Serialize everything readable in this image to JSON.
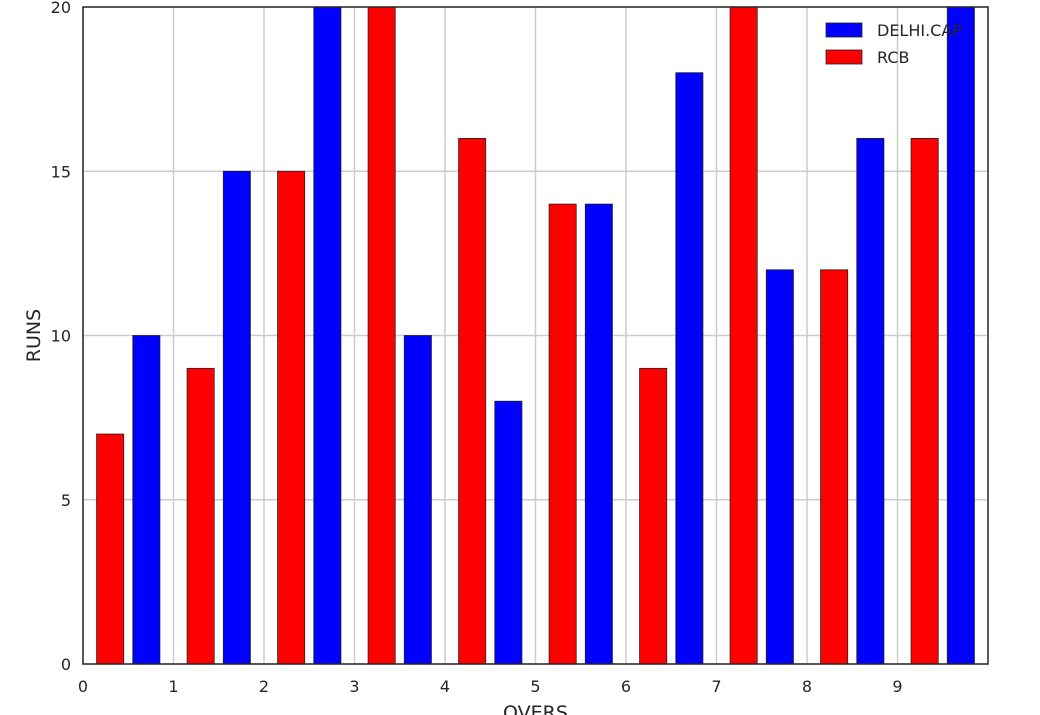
{
  "chart_data": {
    "type": "bar",
    "xlabel": "OVERS",
    "ylabel": "RUNS",
    "xlim": [
      0,
      10
    ],
    "ylim": [
      0,
      20
    ],
    "x_ticks": [
      "0",
      "1",
      "2",
      "3",
      "4",
      "5",
      "6",
      "7",
      "8",
      "9"
    ],
    "y_ticks": [
      "0",
      "5",
      "10",
      "15",
      "20"
    ],
    "grid": true,
    "legend_position": "top-right",
    "series": [
      {
        "name": "DELHI.CAP",
        "color": "#0000ff",
        "x": [
          0.7,
          1.7,
          2.7,
          3.7,
          4.7,
          5.7,
          6.7,
          7.7,
          8.7,
          9.7
        ],
        "values": [
          10,
          15,
          20,
          10,
          8,
          14,
          18,
          12,
          16,
          20
        ]
      },
      {
        "name": "RCB",
        "color": "#ff0000",
        "x": [
          0.3,
          1.3,
          2.3,
          3.3,
          4.3,
          5.3,
          6.3,
          7.3,
          8.3,
          9.3
        ],
        "values": [
          7,
          9,
          15,
          20,
          16,
          14,
          9,
          20,
          12,
          16
        ]
      }
    ]
  }
}
